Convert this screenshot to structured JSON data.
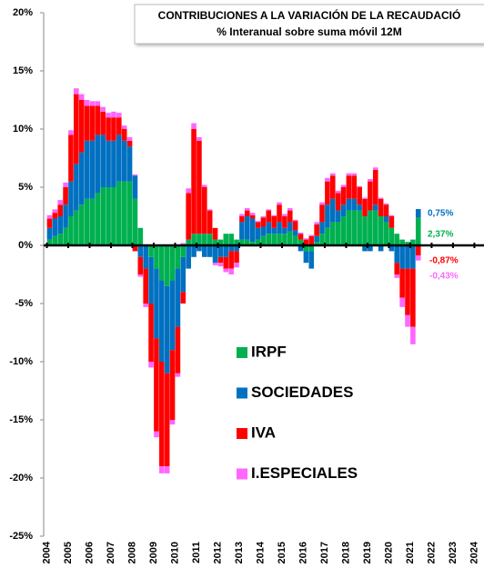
{
  "chart_data": {
    "type": "stacked_bar",
    "title": "CONTRIBUCIONES A LA VARIACIÓN DE LA RECAUDACIÓ",
    "subtitle": "% Interanual sobre suma móvil 12M",
    "xlim": [
      2003.85,
      2024.45
    ],
    "xticks": [
      2004,
      2005,
      2006,
      2007,
      2008,
      2009,
      2010,
      2011,
      2012,
      2013,
      2014,
      2015,
      2016,
      2017,
      2018,
      2019,
      2020,
      2021,
      2022,
      2023,
      2024
    ],
    "ylim": [
      -25,
      20
    ],
    "yticks": [
      {
        "value": -25,
        "label": "-25%"
      },
      {
        "value": -20,
        "label": "-20%"
      },
      {
        "value": -15,
        "label": "-15%"
      },
      {
        "value": -10,
        "label": "-10%"
      },
      {
        "value": -5,
        "label": "-5%"
      },
      {
        "value": 0,
        "label": "0%"
      },
      {
        "value": 5,
        "label": "5%"
      },
      {
        "value": 10,
        "label": "10%"
      },
      {
        "value": 15,
        "label": "15%"
      },
      {
        "value": 20,
        "label": "20%"
      }
    ],
    "x": [
      2004.125,
      2004.375,
      2004.625,
      2004.875,
      2005.125,
      2005.375,
      2005.625,
      2005.875,
      2006.125,
      2006.375,
      2006.625,
      2006.875,
      2007.125,
      2007.375,
      2007.625,
      2007.875,
      2008.125,
      2008.375,
      2008.625,
      2008.875,
      2009.125,
      2009.375,
      2009.625,
      2009.875,
      2010.125,
      2010.375,
      2010.625,
      2010.875,
      2011.125,
      2011.375,
      2011.625,
      2011.875,
      2012.125,
      2012.375,
      2012.625,
      2012.875,
      2013.125,
      2013.375,
      2013.625,
      2013.875,
      2014.125,
      2014.375,
      2014.625,
      2014.875,
      2015.125,
      2015.375,
      2015.625,
      2015.875,
      2016.125,
      2016.375,
      2016.625,
      2016.875,
      2017.125,
      2017.375,
      2017.625,
      2017.875,
      2018.125,
      2018.375,
      2018.625,
      2018.875,
      2019.125,
      2019.375,
      2019.625,
      2019.875,
      2020.125,
      2020.375,
      2020.625,
      2020.875,
      2021.125,
      2021.375
    ],
    "series": [
      {
        "name": "IRPF",
        "color": "#00b050",
        "values": [
          0.5,
          0.8,
          1,
          1.5,
          2.5,
          3,
          3.5,
          4,
          4,
          4.5,
          5,
          5,
          5,
          5.5,
          5.5,
          5.5,
          4,
          1.5,
          0,
          -1,
          -2,
          -3,
          -3.5,
          -3,
          -2,
          -1,
          0.5,
          1,
          1,
          1,
          1,
          0.5,
          0.5,
          1,
          1,
          0.5,
          0.5,
          0.5,
          0.3,
          0.5,
          0.8,
          1,
          1,
          1,
          1,
          1.2,
          0.8,
          0.5,
          -0.5,
          -0.5,
          0.3,
          1,
          1.5,
          2,
          2,
          2.5,
          3,
          3,
          3,
          2.5,
          3,
          3,
          2.5,
          2,
          1.5,
          1,
          0.5,
          0.3,
          0.5,
          2.37
        ]
      },
      {
        "name": "SOCIEDADES",
        "color": "#0070c0",
        "values": [
          1,
          1.5,
          1.5,
          2,
          3,
          4,
          4.5,
          5,
          5,
          5,
          4.5,
          4,
          4,
          4,
          3.5,
          3,
          2,
          -1,
          -2,
          -4,
          -6,
          -7,
          -7.5,
          -6,
          -5,
          -3,
          -2,
          -1,
          -0.5,
          -1,
          -1,
          -1.5,
          -1,
          -1,
          -0.5,
          -0.5,
          1.5,
          2,
          2,
          1,
          0.8,
          1,
          0.5,
          1,
          0.5,
          0.8,
          0.5,
          -0.5,
          -1,
          -1.5,
          0.5,
          1,
          2,
          2,
          1,
          1,
          1,
          1,
          0.5,
          -0.5,
          -0.5,
          0.5,
          -0.5,
          0.5,
          -0.5,
          -1.5,
          -2,
          -2,
          -2,
          0.75
        ]
      },
      {
        "name": "IVA",
        "color": "#ff0000",
        "values": [
          0.8,
          0.5,
          1,
          1.5,
          4,
          6,
          4.5,
          3,
          3,
          2.5,
          2,
          2,
          2,
          1.5,
          1,
          0.5,
          -0.5,
          -1.5,
          -3,
          -5,
          -8,
          -9,
          -8,
          -6,
          -4,
          -1,
          4,
          9,
          8,
          4,
          2,
          1,
          -0.5,
          -1,
          -1.5,
          -1,
          0.5,
          0.5,
          0.3,
          0.5,
          0.8,
          1,
          1,
          1.5,
          1,
          1,
          0.8,
          0.5,
          0.5,
          0.8,
          1,
          1.5,
          2,
          2,
          1.5,
          1.5,
          2,
          2,
          1.5,
          1.5,
          2.5,
          3,
          1.5,
          1,
          1,
          -1,
          -2.5,
          -4,
          -5,
          -0.87
        ]
      },
      {
        "name": "I.ESPECIALES",
        "color": "#ff66ff",
        "values": [
          0.3,
          0.3,
          0.4,
          0.4,
          0.4,
          0.5,
          0.5,
          0.5,
          0.4,
          0.4,
          0.4,
          0.4,
          0.5,
          0.4,
          0.3,
          0.3,
          0.1,
          -0.2,
          -0.3,
          -0.5,
          -0.5,
          -0.6,
          -0.6,
          -0.4,
          -0.3,
          0.2,
          0.4,
          0.5,
          0.3,
          0.2,
          0.1,
          -0.2,
          -0.3,
          -0.3,
          -0.5,
          -0.4,
          0.2,
          0.2,
          0.2,
          0.1,
          0.1,
          0.1,
          0.1,
          0.2,
          0.2,
          0.2,
          0.1,
          0.1,
          0.1,
          0.1,
          0.2,
          0.2,
          0.3,
          0.2,
          0.2,
          0.2,
          0.2,
          0.2,
          0.1,
          0.1,
          0.2,
          0.2,
          0.1,
          0.1,
          0.1,
          -0.3,
          -0.8,
          -1,
          -1.5,
          -0.43
        ]
      }
    ],
    "annotations": [
      {
        "text": "0,75%",
        "color": "#0070c0"
      },
      {
        "text": "2,37%",
        "color": "#00b050"
      },
      {
        "text": "-0,87%",
        "color": "#ff0000"
      },
      {
        "text": "-0,43%",
        "color": "#ff66ff"
      }
    ]
  }
}
